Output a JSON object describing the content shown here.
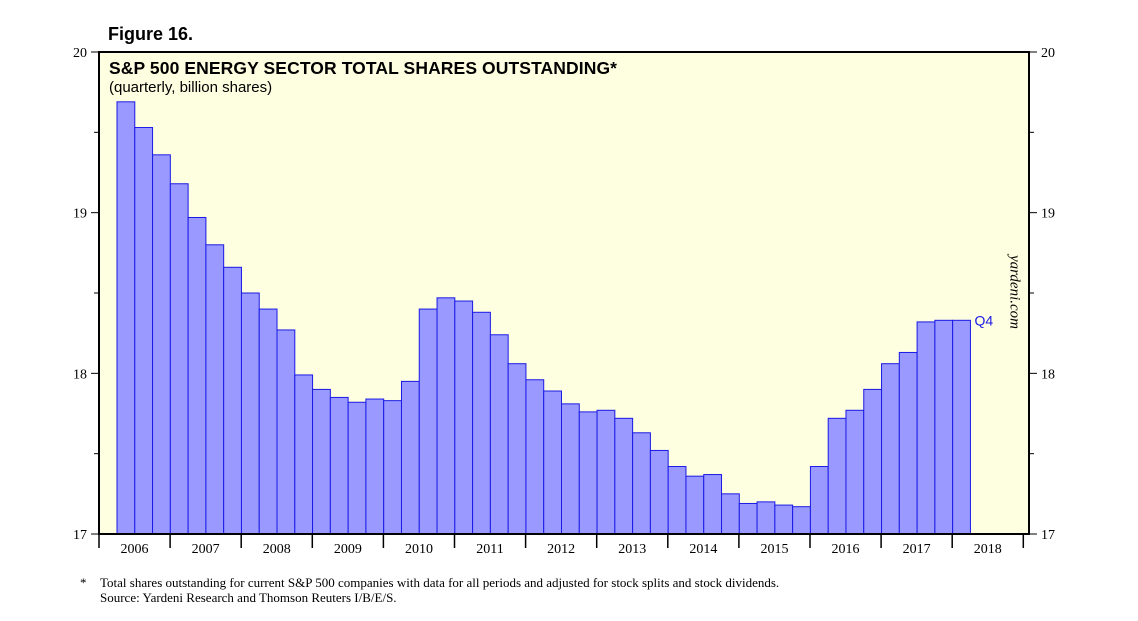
{
  "figure_label": "Figure 16.",
  "watermark": "yardeni.com",
  "footnote": {
    "marker": "*",
    "line1": "Total shares outstanding for current S&P 500 companies with data for all periods and adjusted for stock splits and stock dividends.",
    "line2": "Source: Yardeni Research and Thomson Reuters I/B/E/S."
  },
  "colors": {
    "plot_background": "#fefee0",
    "bar_fill": "#9999ff",
    "bar_stroke": "#1a1ae6",
    "annotation": "#1a1ae6"
  },
  "chart_data": {
    "type": "bar",
    "title": "S&P 500 ENERGY SECTOR TOTAL SHARES OUTSTANDING*",
    "subtitle": "(quarterly, billion shares)",
    "xlabel": "",
    "ylabel": "",
    "ylim": [
      17,
      20
    ],
    "yticks": [
      17,
      18,
      19,
      20
    ],
    "x_years": [
      "2006",
      "2007",
      "2008",
      "2009",
      "2010",
      "2011",
      "2012",
      "2013",
      "2014",
      "2015",
      "2016",
      "2017",
      "2018"
    ],
    "annotation": "Q4",
    "categories": [
      "2006 Q1",
      "2006 Q2",
      "2006 Q3",
      "2006 Q4",
      "2007 Q1",
      "2007 Q2",
      "2007 Q3",
      "2007 Q4",
      "2008 Q1",
      "2008 Q2",
      "2008 Q3",
      "2008 Q4",
      "2009 Q1",
      "2009 Q2",
      "2009 Q3",
      "2009 Q4",
      "2010 Q1",
      "2010 Q2",
      "2010 Q3",
      "2010 Q4",
      "2011 Q1",
      "2011 Q2",
      "2011 Q3",
      "2011 Q4",
      "2012 Q1",
      "2012 Q2",
      "2012 Q3",
      "2012 Q4",
      "2013 Q1",
      "2013 Q2",
      "2013 Q3",
      "2013 Q4",
      "2014 Q1",
      "2014 Q2",
      "2014 Q3",
      "2014 Q4",
      "2015 Q1",
      "2015 Q2",
      "2015 Q3",
      "2015 Q4",
      "2016 Q1",
      "2016 Q2",
      "2016 Q3",
      "2016 Q4",
      "2017 Q1",
      "2017 Q2",
      "2017 Q3",
      "2017 Q4"
    ],
    "values": [
      19.69,
      19.53,
      19.36,
      19.18,
      18.97,
      18.8,
      18.66,
      18.5,
      18.4,
      18.27,
      17.99,
      17.9,
      17.85,
      17.82,
      17.84,
      17.83,
      17.95,
      18.4,
      18.47,
      18.45,
      18.38,
      18.24,
      18.06,
      17.96,
      17.89,
      17.81,
      17.76,
      17.77,
      17.72,
      17.63,
      17.52,
      17.42,
      17.36,
      17.37,
      17.25,
      17.19,
      17.2,
      17.18,
      17.17,
      17.42,
      17.72,
      17.77,
      17.9,
      18.06,
      18.13,
      18.32,
      18.33,
      18.33
    ]
  }
}
